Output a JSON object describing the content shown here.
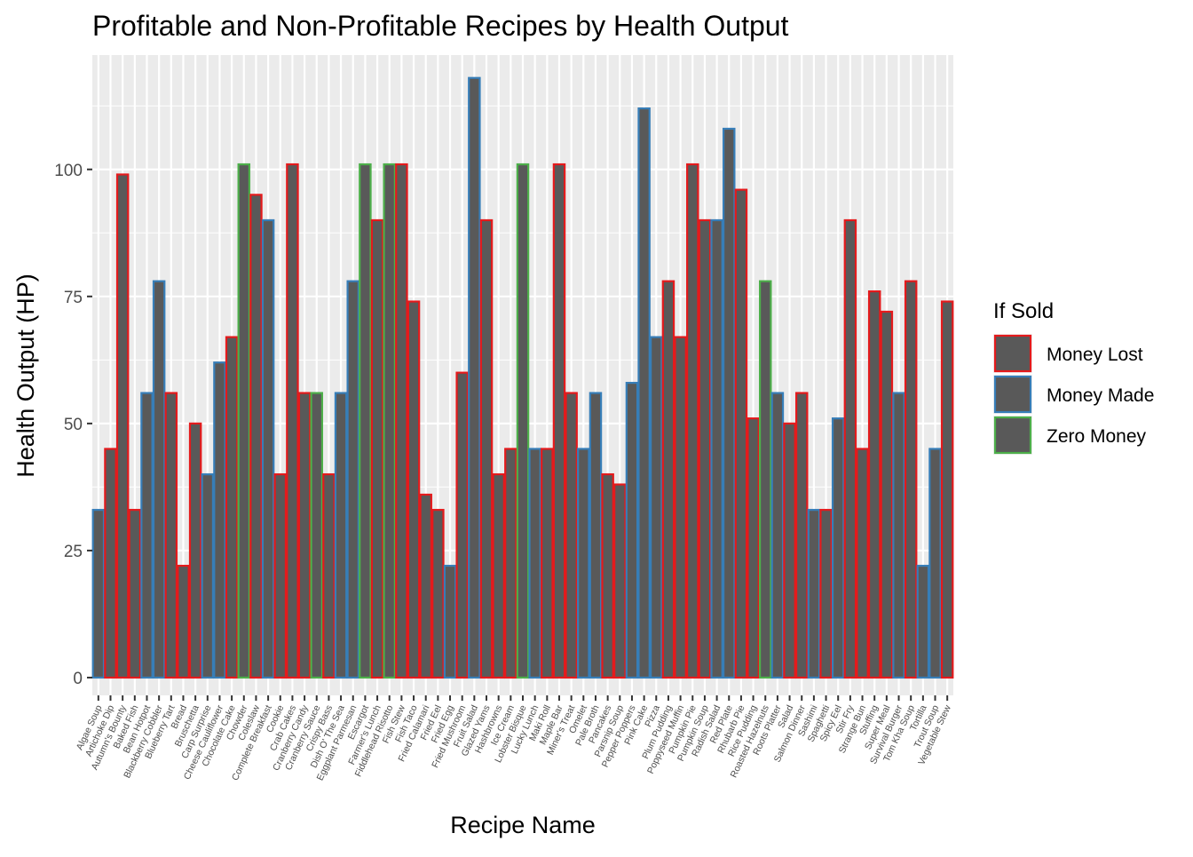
{
  "chart_data": {
    "type": "bar",
    "title": "Profitable and Non-Profitable Recipes by Health Output",
    "xlabel": "Recipe Name",
    "ylabel": "Health Output (HP)",
    "ylim": [
      -3.5,
      122.5
    ],
    "yticks": [
      0,
      25,
      50,
      75,
      100
    ],
    "grid": true,
    "legend": {
      "title": "If Sold",
      "placement": "right",
      "entries": [
        {
          "label": "Money Lost",
          "color": "#e41a1c"
        },
        {
          "label": "Money Made",
          "color": "#377eb8"
        },
        {
          "label": "Zero Money",
          "color": "#4daf4a"
        }
      ]
    },
    "bar_fill": "#595959",
    "panel_background": "#ebebeb",
    "categories": [
      "Algae Soup",
      "Artichoke Dip",
      "Autumn's Bounty",
      "Baked Fish",
      "Bean Hotpot",
      "Blackberry Cobbler",
      "Blueberry Tart",
      "Bread",
      "Bruschetta",
      "Carp Surprise",
      "Cheese Cauliflower",
      "Chocolate Cake",
      "Chowder",
      "Coleslaw",
      "Complete Breakfast",
      "Cookie",
      "Crab Cakes",
      "Cranberry Candy",
      "Cranberry Sauce",
      "Crispy Bass",
      "Dish O' The Sea",
      "Eggplant Parmesan",
      "Escargot",
      "Farmer's Lunch",
      "Fiddlehead Risotto",
      "Fish Stew",
      "Fish Taco",
      "Fried Calamari",
      "Fried Eel",
      "Fried Egg",
      "Fried Mushroom",
      "Fruit Salad",
      "Glazed Yams",
      "Hashbrowns",
      "Ice Cream",
      "Lobster Bisque",
      "Lucky Lunch",
      "Maki Roll",
      "Maple Bar",
      "Miner's Treat",
      "Omelet",
      "Pale Broth",
      "Pancakes",
      "Parsnip Soup",
      "Pepper Poppers",
      "Pink Cake",
      "Pizza",
      "Plum Pudding",
      "Poppyseed Muffin",
      "Pumpkin Pie",
      "Pumpkin Soup",
      "Radish Salad",
      "Red Plate",
      "Rhubarb Pie",
      "Rice Pudding",
      "Roasted Hazelnuts",
      "Roots Platter",
      "Salad",
      "Salmon Dinner",
      "Sashimi",
      "Spaghetti",
      "Spicy Eel",
      "Stir Fry",
      "Strange Bun",
      "Stuffing",
      "Super Meal",
      "Survival Burger",
      "Tom Kha Soup",
      "Tortilla",
      "Trout Soup",
      "Vegetable Stew"
    ],
    "values": [
      33,
      45,
      99,
      33,
      56,
      78,
      56,
      22,
      50,
      40,
      62,
      67,
      101,
      95,
      90,
      40,
      101,
      56,
      56,
      40,
      56,
      78,
      101,
      90,
      101,
      101,
      74,
      36,
      33,
      22,
      60,
      118,
      90,
      40,
      45,
      101,
      45,
      45,
      101,
      56,
      45,
      56,
      40,
      38,
      58,
      112,
      67,
      78,
      67,
      101,
      90,
      90,
      108,
      96,
      51,
      78,
      56,
      50,
      56,
      33,
      33,
      51,
      90,
      45,
      76,
      72,
      56,
      78,
      22,
      45,
      74
    ],
    "groups": [
      "Money Made",
      "Money Lost",
      "Money Lost",
      "Money Lost",
      "Money Made",
      "Money Made",
      "Money Lost",
      "Money Lost",
      "Money Lost",
      "Money Made",
      "Money Made",
      "Money Lost",
      "Zero Money",
      "Money Lost",
      "Money Made",
      "Money Lost",
      "Money Lost",
      "Money Lost",
      "Zero Money",
      "Money Lost",
      "Money Made",
      "Money Made",
      "Zero Money",
      "Money Lost",
      "Zero Money",
      "Money Lost",
      "Money Lost",
      "Money Lost",
      "Money Lost",
      "Money Made",
      "Money Lost",
      "Money Made",
      "Money Lost",
      "Money Lost",
      "Money Lost",
      "Zero Money",
      "Money Made",
      "Money Lost",
      "Money Lost",
      "Money Lost",
      "Money Made",
      "Money Made",
      "Money Lost",
      "Money Lost",
      "Money Made",
      "Money Made",
      "Money Made",
      "Money Lost",
      "Money Lost",
      "Money Lost",
      "Money Lost",
      "Money Made",
      "Money Made",
      "Money Lost",
      "Money Lost",
      "Zero Money",
      "Money Made",
      "Money Lost",
      "Money Lost",
      "Money Made",
      "Money Lost",
      "Money Made",
      "Money Lost",
      "Money Lost",
      "Money Lost",
      "Money Lost",
      "Money Made",
      "Money Lost",
      "Money Made",
      "Money Made",
      "Money Lost"
    ]
  }
}
